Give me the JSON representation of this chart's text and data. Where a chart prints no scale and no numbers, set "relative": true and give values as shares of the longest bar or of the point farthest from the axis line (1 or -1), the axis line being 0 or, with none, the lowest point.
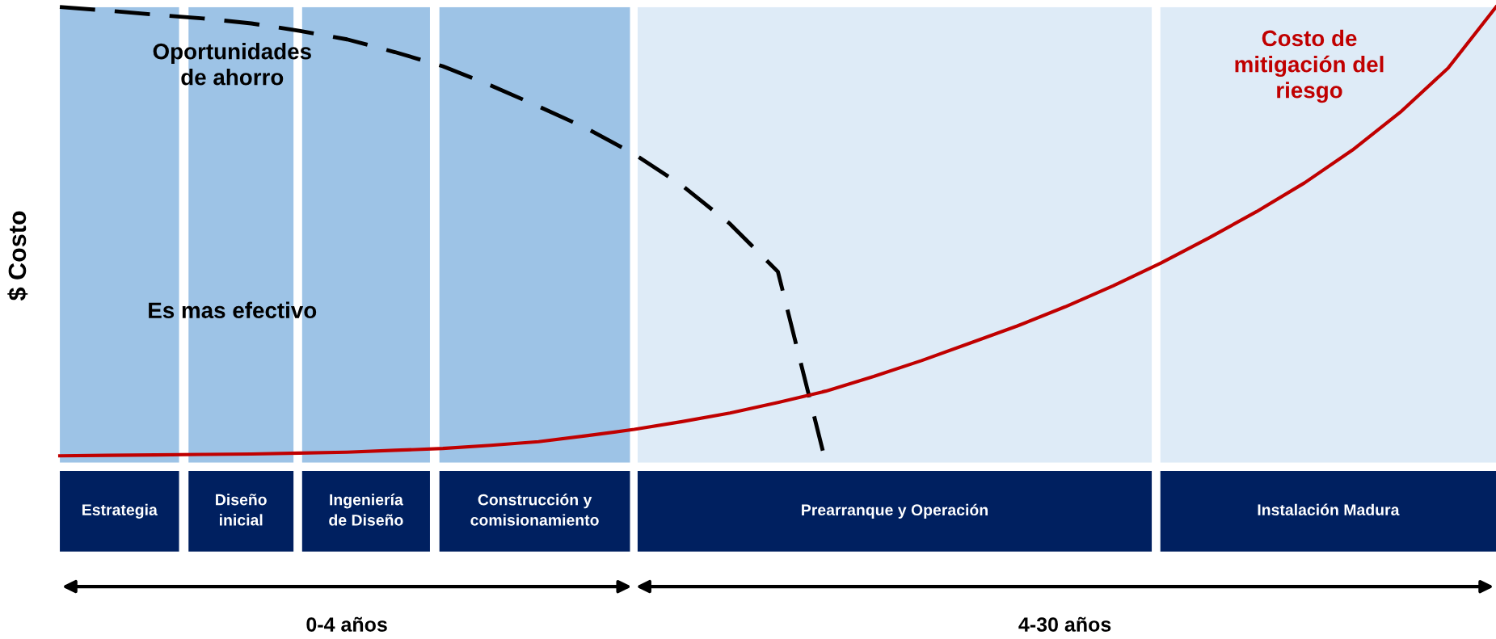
{
  "chart_data": {
    "type": "line",
    "relative": true,
    "ylabel": "$ Costo",
    "categories": [
      null,
      null,
      null,
      null,
      null,
      null,
      null,
      null,
      null,
      null,
      null,
      null,
      null,
      null,
      null,
      null,
      null,
      null,
      null,
      null,
      null,
      null,
      null,
      null,
      null,
      null,
      null,
      null,
      null,
      null,
      null
    ],
    "series": [
      {
        "name": "Oportunidades\nde ahorro",
        "color": "#000000",
        "line_style": "dashed",
        "values": [
          1,
          0.992,
          0.983,
          0.975,
          0.964,
          0.948,
          0.929,
          0.901,
          0.87,
          0.828,
          0.782,
          0.734,
          0.677,
          0.608,
          0.524,
          0.419,
          0,
          null,
          null,
          null,
          null,
          null,
          null,
          null,
          null,
          null,
          null,
          null,
          null,
          null,
          null
        ]
      },
      {
        "name": "Costo de\nmitigación del\nriesgo",
        "color": "#c00000",
        "line_style": "solid",
        "values": [
          0.015,
          0.016,
          0.017,
          0.018,
          0.019,
          0.021,
          0.023,
          0.027,
          0.031,
          0.038,
          0.046,
          0.059,
          0.073,
          0.09,
          0.109,
          0.132,
          0.157,
          0.189,
          0.224,
          0.262,
          0.3,
          0.342,
          0.388,
          0.438,
          0.493,
          0.551,
          0.614,
          0.686,
          0.769,
          0.866,
          1
        ]
      }
    ],
    "annotations": [
      "Estrategia",
      "Diseño\ninicial",
      "Ingeniería\nde Diseño",
      "Construcción y\ncomisionamiento",
      "Prearranque y Operación",
      "Instalación Madura",
      "Es mas efectivo",
      "0-4 años",
      "4-30 años"
    ],
    "legend": false
  }
}
